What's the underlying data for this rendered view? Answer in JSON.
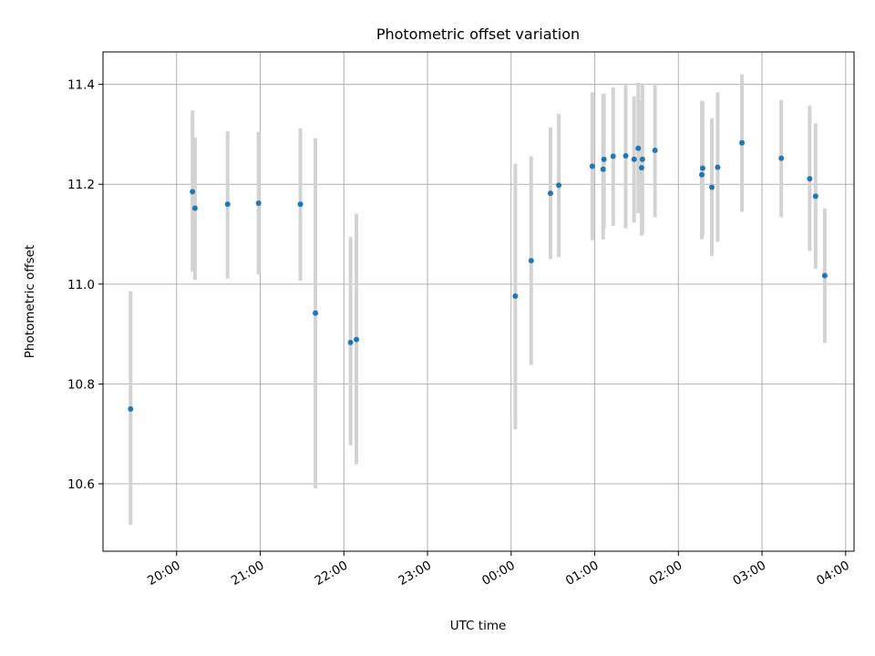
{
  "colors": {
    "marker": "#1f77b4",
    "errorbar": "#d3d3d3",
    "grid": "#b0b0b0",
    "axes": "#000000",
    "background": "#ffffff"
  },
  "chart_data": {
    "type": "scatter",
    "title": "Photometric offset variation",
    "xlabel": "UTC time",
    "ylabel": "Photometric offset",
    "x_unit": "hours (UTC, continuous from 19:00; 24+ means next day)",
    "xlim": [
      19.12,
      28.1
    ],
    "ylim": [
      10.465,
      11.465
    ],
    "grid": true,
    "legend": "none",
    "x_ticks": [
      {
        "value": 20,
        "label": "20:00"
      },
      {
        "value": 21,
        "label": "21:00"
      },
      {
        "value": 22,
        "label": "22:00"
      },
      {
        "value": 23,
        "label": "23:00"
      },
      {
        "value": 24,
        "label": "00:00"
      },
      {
        "value": 25,
        "label": "01:00"
      },
      {
        "value": 26,
        "label": "02:00"
      },
      {
        "value": 27,
        "label": "03:00"
      },
      {
        "value": 28,
        "label": "04:00"
      }
    ],
    "y_ticks": [
      {
        "value": 10.6,
        "label": "10.6"
      },
      {
        "value": 10.8,
        "label": "10.8"
      },
      {
        "value": 11.0,
        "label": "11.0"
      },
      {
        "value": 11.2,
        "label": "11.2"
      },
      {
        "value": 11.4,
        "label": "11.4"
      }
    ],
    "points": [
      {
        "x": 19.45,
        "y": 10.75,
        "ylo": 10.518,
        "yhi": 10.986
      },
      {
        "x": 20.19,
        "y": 11.185,
        "ylo": 11.025,
        "yhi": 11.348
      },
      {
        "x": 20.22,
        "y": 11.152,
        "ylo": 11.008,
        "yhi": 11.294
      },
      {
        "x": 20.61,
        "y": 11.16,
        "ylo": 11.011,
        "yhi": 11.306
      },
      {
        "x": 20.98,
        "y": 11.162,
        "ylo": 11.019,
        "yhi": 11.305
      },
      {
        "x": 21.48,
        "y": 11.16,
        "ylo": 11.007,
        "yhi": 11.312
      },
      {
        "x": 21.66,
        "y": 10.942,
        "ylo": 10.591,
        "yhi": 11.292
      },
      {
        "x": 22.08,
        "y": 10.883,
        "ylo": 10.677,
        "yhi": 11.094
      },
      {
        "x": 22.15,
        "y": 10.889,
        "ylo": 10.639,
        "yhi": 11.141
      },
      {
        "x": 24.05,
        "y": 10.976,
        "ylo": 10.709,
        "yhi": 11.241
      },
      {
        "x": 24.24,
        "y": 11.047,
        "ylo": 10.838,
        "yhi": 11.256
      },
      {
        "x": 24.47,
        "y": 11.182,
        "ylo": 11.05,
        "yhi": 11.314
      },
      {
        "x": 24.57,
        "y": 11.198,
        "ylo": 11.054,
        "yhi": 11.341
      },
      {
        "x": 24.97,
        "y": 11.236,
        "ylo": 11.088,
        "yhi": 11.384
      },
      {
        "x": 25.1,
        "y": 11.23,
        "ylo": 11.089,
        "yhi": 11.381
      },
      {
        "x": 25.11,
        "y": 11.25,
        "ylo": 11.112,
        "yhi": 11.382
      },
      {
        "x": 25.22,
        "y": 11.256,
        "ylo": 11.117,
        "yhi": 11.394
      },
      {
        "x": 25.37,
        "y": 11.257,
        "ylo": 11.112,
        "yhi": 11.402
      },
      {
        "x": 25.47,
        "y": 11.25,
        "ylo": 11.123,
        "yhi": 11.376
      },
      {
        "x": 25.52,
        "y": 11.272,
        "ylo": 11.142,
        "yhi": 11.403
      },
      {
        "x": 25.56,
        "y": 11.233,
        "ylo": 11.097,
        "yhi": 11.368
      },
      {
        "x": 25.57,
        "y": 11.25,
        "ylo": 11.1,
        "yhi": 11.402
      },
      {
        "x": 25.72,
        "y": 11.268,
        "ylo": 11.134,
        "yhi": 11.402
      },
      {
        "x": 26.28,
        "y": 11.219,
        "ylo": 11.09,
        "yhi": 11.367
      },
      {
        "x": 26.29,
        "y": 11.232,
        "ylo": 11.097,
        "yhi": 11.366
      },
      {
        "x": 26.4,
        "y": 11.194,
        "ylo": 11.056,
        "yhi": 11.332
      },
      {
        "x": 26.47,
        "y": 11.234,
        "ylo": 11.085,
        "yhi": 11.384
      },
      {
        "x": 26.76,
        "y": 11.283,
        "ylo": 11.145,
        "yhi": 11.42
      },
      {
        "x": 27.23,
        "y": 11.252,
        "ylo": 11.134,
        "yhi": 11.369
      },
      {
        "x": 27.57,
        "y": 11.211,
        "ylo": 11.066,
        "yhi": 11.357
      },
      {
        "x": 27.64,
        "y": 11.176,
        "ylo": 11.031,
        "yhi": 11.322
      },
      {
        "x": 27.75,
        "y": 11.017,
        "ylo": 10.882,
        "yhi": 11.152
      }
    ]
  }
}
